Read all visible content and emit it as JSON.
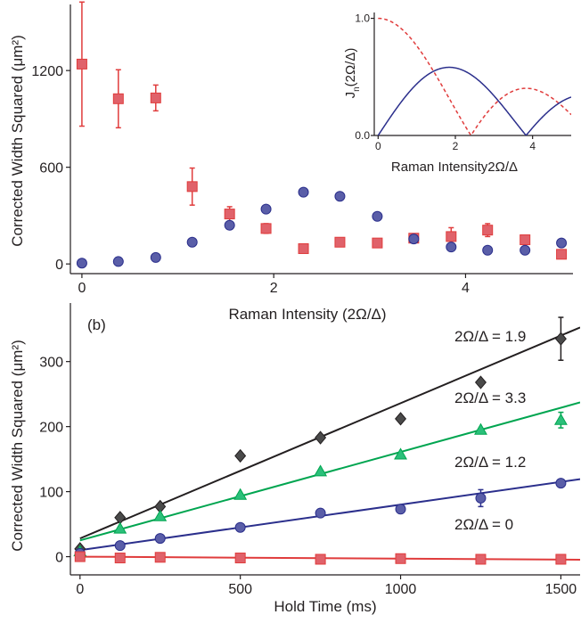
{
  "colors": {
    "red": "#e03c3c",
    "red_fill": "#e0626a",
    "blue": "#2b2f8c",
    "blue_fill": "#5a5ea8",
    "green": "#00a550",
    "green_fill": "#2bc07a",
    "black": "#231f20",
    "gray_fill": "#4a4a4a"
  },
  "chart_data": [
    {
      "type": "scatter",
      "panel": "top",
      "title": "",
      "xlabel": "Raman Intensity (2Ω/Δ)",
      "ylabel": "Corrected Width Squared (μm²)",
      "xlim": [
        -0.12,
        5.12
      ],
      "ylim": [
        -60,
        1610
      ],
      "xticks": [
        0,
        2,
        4
      ],
      "yticks": [
        0,
        600,
        1200
      ],
      "series": [
        {
          "marker": "square",
          "color": "red",
          "x": [
            0,
            0.38,
            0.77,
            1.15,
            1.54,
            1.92,
            2.31,
            2.69,
            3.08,
            3.46,
            3.85,
            4.23,
            4.62,
            5.0
          ],
          "y": [
            1240,
            1025,
            1030,
            480,
            310,
            220,
            95,
            135,
            130,
            160,
            170,
            210,
            150,
            60
          ],
          "err": [
            385,
            180,
            80,
            115,
            45,
            30,
            0,
            0,
            0,
            0,
            55,
            40,
            0,
            0
          ]
        },
        {
          "marker": "circle",
          "color": "blue",
          "x": [
            0,
            0.38,
            0.77,
            1.15,
            1.54,
            1.92,
            2.31,
            2.69,
            3.08,
            3.46,
            3.85,
            4.23,
            4.62,
            5.0
          ],
          "y": [
            5,
            15,
            40,
            135,
            240,
            340,
            445,
            420,
            295,
            155,
            105,
            85,
            85,
            130
          ],
          "err": [
            0,
            0,
            0,
            0,
            0,
            0,
            0,
            0,
            0,
            0,
            0,
            0,
            0,
            0
          ]
        }
      ]
    },
    {
      "type": "line",
      "panel": "inset",
      "title": "",
      "xlabel": "Raman Intensity2Ω/Δ",
      "ylabel_main": "J",
      "ylabel_sub": "n",
      "ylabel_rest": "(2Ω/Δ)",
      "xlim": [
        -0.1,
        5.0
      ],
      "ylim": [
        0.0,
        1.05
      ],
      "xticks": [
        0,
        2,
        4
      ],
      "yticks": [
        0.0,
        1.0
      ],
      "ytick_labels": [
        "0.0",
        "1.0"
      ],
      "series": [
        {
          "function": "|J0(x)|",
          "style": "dashed",
          "color": "red"
        },
        {
          "function": "|J1(x)|",
          "style": "solid",
          "color": "blue"
        }
      ]
    },
    {
      "type": "scatter",
      "panel": "bottom",
      "title": "",
      "panel_label": "(b)",
      "xlabel": "Hold Time (ms)",
      "ylabel": "Corrected Width Squared (μm²)",
      "xlim": [
        -30,
        1560
      ],
      "ylim": [
        -28,
        390
      ],
      "xticks": [
        0,
        500,
        1000,
        1500
      ],
      "yticks": [
        0,
        100,
        200,
        300
      ],
      "series": [
        {
          "label": "2Ω/Δ = 1.9",
          "marker": "diamond",
          "color": "black",
          "fill": "gray_fill",
          "x": [
            0,
            125,
            250,
            500,
            750,
            1000,
            1250,
            1500
          ],
          "y": [
            12,
            60,
            77,
            155,
            183,
            212,
            268,
            335
          ],
          "err": [
            0,
            0,
            0,
            0,
            0,
            0,
            0,
            33
          ],
          "fit": [
            28,
            0.208
          ]
        },
        {
          "label": "2Ω/Δ = 3.3",
          "marker": "triangle",
          "color": "green",
          "fill": "green_fill",
          "x": [
            0,
            125,
            250,
            500,
            750,
            1000,
            1250,
            1500
          ],
          "y": [
            8,
            43,
            62,
            95,
            131,
            157,
            195,
            210
          ],
          "err": [
            0,
            0,
            0,
            0,
            0,
            0,
            0,
            12
          ],
          "fit": [
            25,
            0.136
          ]
        },
        {
          "label": "2Ω/Δ = 1.2",
          "marker": "circle",
          "color": "blue",
          "fill": "blue_fill",
          "x": [
            0,
            125,
            250,
            500,
            750,
            1000,
            1250,
            1500
          ],
          "y": [
            5,
            17,
            28,
            45,
            67,
            73,
            90,
            113
          ],
          "err": [
            0,
            0,
            0,
            0,
            0,
            0,
            13,
            0
          ],
          "fit": [
            10,
            0.07
          ]
        },
        {
          "label": "2Ω/Δ = 0",
          "marker": "square",
          "color": "red",
          "fill": "red_fill",
          "x": [
            0,
            125,
            250,
            500,
            750,
            1000,
            1250,
            1500
          ],
          "y": [
            0,
            -2,
            -1,
            -2,
            -4,
            -3,
            -4,
            -4
          ],
          "err": [
            0,
            0,
            0,
            0,
            0,
            0,
            0,
            0
          ],
          "fit": [
            0,
            -0.003
          ]
        }
      ]
    }
  ]
}
